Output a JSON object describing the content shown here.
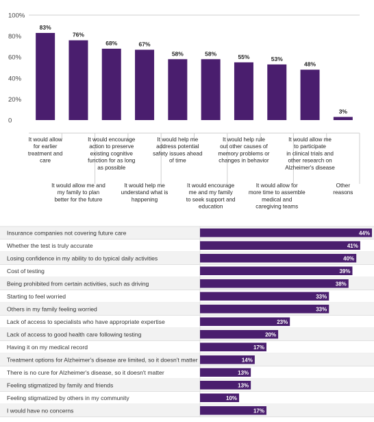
{
  "colors": {
    "bar": "#4a1e6e",
    "grid": "#cfcfcf",
    "row_alt": "#f2f2f2",
    "row_line": "#d9d9d9"
  },
  "chart_data": [
    {
      "type": "bar",
      "title": "",
      "xlabel": "",
      "ylabel": "",
      "ylim": [
        0,
        100
      ],
      "yticks": [
        "0",
        "20%",
        "40%",
        "60%",
        "80%",
        "100%"
      ],
      "categories": [
        "It would allow for earlier treatment and care",
        "It would allow me and my family to plan better for the future",
        "It would encourage action to preserve existing cognitive function for as long as possible",
        "It would help me understand what is happening",
        "It would help me address potential safety issues ahead of time",
        "It would encourage me and my family to seek support and education",
        "It would help rule out other causes of memory problems or changes in behavior",
        "It would allow for more time to assemble medical and caregiving teams",
        "It would allow me to participate in clinical trials and other research on Alzheimer's disease",
        "Other reasons"
      ],
      "label_lines": [
        [
          "It would allow",
          "for earlier",
          "treatment and",
          "care"
        ],
        [
          "It would allow me and",
          "my family to plan",
          "better for the future"
        ],
        [
          "It would encourage",
          "action to preserve",
          "existing cognitive",
          "function for as long",
          "as possible"
        ],
        [
          "It would help me",
          "understand what is",
          "happening"
        ],
        [
          "It would help me",
          "address potential",
          "safety issues ahead",
          "of time"
        ],
        [
          "It would encourage",
          "me and my family",
          "to seek support and",
          "education"
        ],
        [
          "It would help rule",
          "out other causes of",
          "memory problems or",
          "changes in behavior"
        ],
        [
          "It would allow for",
          "more time to assemble",
          "medical and",
          "caregiving teams"
        ],
        [
          "It would allow me",
          "to participate",
          "in clinical trials and",
          "other research on",
          "Alzheimer's disease"
        ],
        [
          "Other",
          "reasons"
        ]
      ],
      "values": [
        83,
        76,
        68,
        67,
        58,
        58,
        55,
        53,
        48,
        3
      ],
      "value_labels": [
        "83%",
        "76%",
        "68%",
        "67%",
        "58%",
        "58%",
        "55%",
        "53%",
        "48%",
        "3%"
      ],
      "grid": true
    },
    {
      "type": "bar",
      "orientation": "horizontal",
      "title": "",
      "xlabel": "",
      "ylabel": "",
      "xlim": [
        0,
        44
      ],
      "categories": [
        "Insurance companies not covering future care",
        "Whether the test is truly accurate",
        "Losing confidence in my ability to do typical daily activities",
        "Cost of testing",
        "Being prohibited from certain activities, such as driving",
        "Starting to feel worried",
        "Others in my family feeling worried",
        "Lack of access to specialists who have appropriate expertise",
        "Lack of access to good health care following testing",
        "Having it on my medical record",
        "Treatment options for Alzheimer's disease are limited, so it doesn't matter",
        "There is no cure for Alzheimer's disease, so it doesn't matter",
        "Feeling stigmatized by family and friends",
        "Feeling stigmatized by others in my community",
        "I would have no concerns"
      ],
      "values": [
        44,
        41,
        40,
        39,
        38,
        33,
        33,
        23,
        20,
        17,
        14,
        13,
        13,
        10,
        17
      ],
      "value_labels": [
        "44%",
        "41%",
        "40%",
        "39%",
        "38%",
        "33%",
        "33%",
        "23%",
        "20%",
        "17%",
        "14%",
        "13%",
        "13%",
        "10%",
        "17%"
      ],
      "grid": false
    }
  ]
}
